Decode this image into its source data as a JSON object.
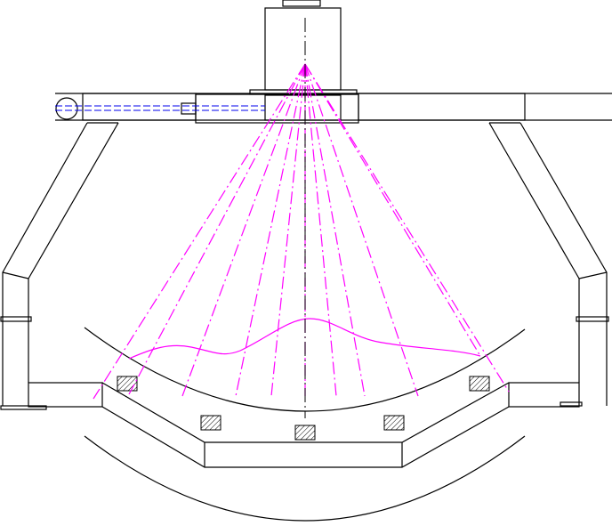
{
  "drawing": {
    "colors": {
      "outline": "#000000",
      "spray": "#ff00ff",
      "hidden": "#0000ee",
      "hatch": "#000000"
    },
    "spray_ray_count": 11,
    "hatched_blocks": 5
  }
}
